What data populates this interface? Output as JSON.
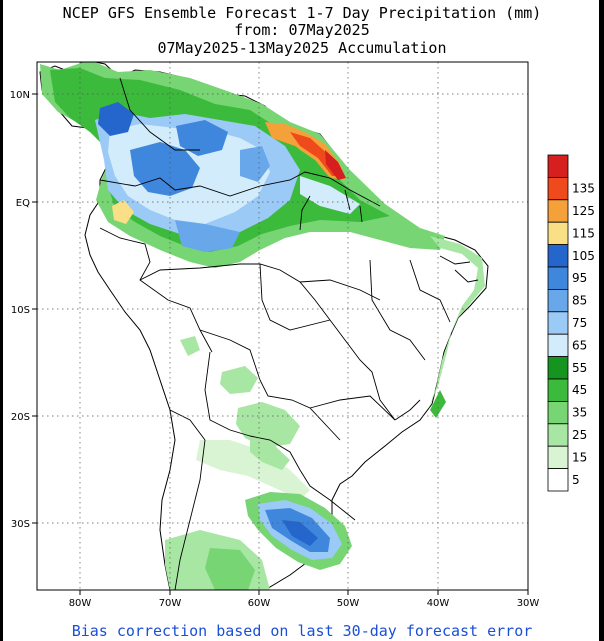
{
  "title": {
    "line1": "NCEP GFS Ensemble Forecast 1-7 Day Precipitation (mm)",
    "line2": "from: 07May2025",
    "line3": "07May2025-13May2025 Accumulation"
  },
  "footer": "Bias correction based on last 30-day forecast error",
  "axes": {
    "lon_labels": [
      "80W",
      "70W",
      "60W",
      "50W",
      "40W",
      "30W"
    ],
    "lat_labels": [
      "10N",
      "EQ",
      "10S",
      "20S",
      "30S"
    ]
  },
  "legend": {
    "levels": [
      {
        "label": "",
        "color": "#d61f1f"
      },
      {
        "label": "135",
        "color": "#ee4a1c"
      },
      {
        "label": "125",
        "color": "#f5a13a"
      },
      {
        "label": "115",
        "color": "#f9df86"
      },
      {
        "label": "105",
        "color": "#2566cc"
      },
      {
        "label": "95",
        "color": "#3f86dd"
      },
      {
        "label": "85",
        "color": "#69a7eb"
      },
      {
        "label": "75",
        "color": "#9ccaf6"
      },
      {
        "label": "65",
        "color": "#d2ecfb"
      },
      {
        "label": "55",
        "color": "#15951f"
      },
      {
        "label": "45",
        "color": "#3cba3c"
      },
      {
        "label": "35",
        "color": "#77d574"
      },
      {
        "label": "25",
        "color": "#a8e6a3"
      },
      {
        "label": "15",
        "color": "#d8f4d3"
      },
      {
        "label": "5",
        "color": "#ffffff"
      }
    ]
  },
  "colors": {
    "background": "#ffffff",
    "frame_border": "#000000",
    "footer_text": "#1a4fd6"
  }
}
